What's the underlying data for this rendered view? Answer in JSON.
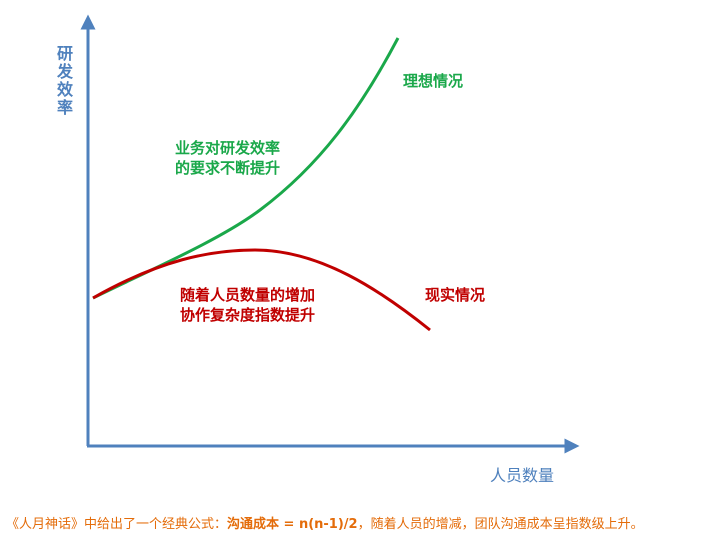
{
  "axes": {
    "y_label": "研发效率",
    "x_label": "人员数量"
  },
  "ideal": {
    "label": "理想情况",
    "note_line1": "业务对研发效率",
    "note_line2": "的要求不断提升"
  },
  "real": {
    "label": "现实情况",
    "note_line1": "随着人员数量的增加",
    "note_line2": "协作复杂度指数提升"
  },
  "caption": {
    "prefix": "《人月神话》中给出了一个经典公式：",
    "formula": "沟通成本 = n(n-1)/2",
    "suffix": "，随着人员的增减，团队沟通成本呈指数级上升。"
  }
}
